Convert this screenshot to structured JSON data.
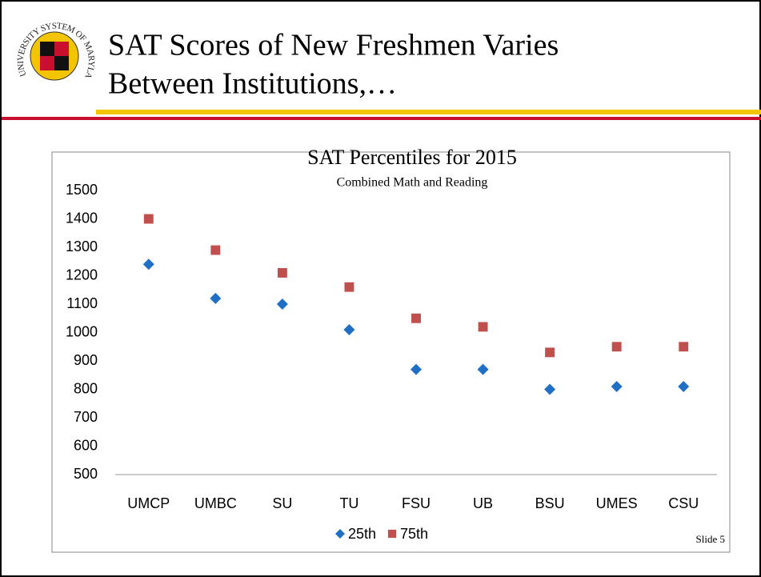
{
  "slide": {
    "title_lines": [
      "SAT Scores of New Freshmen Varies",
      "Between Institutions,…"
    ],
    "logo_text": "UNIVERSITY SYSTEM OF MARYLAND",
    "footer": "Slide 5"
  },
  "chart_data": {
    "type": "scatter",
    "title": "SAT Percentiles for 2015",
    "subtitle": "Combined Math and Reading",
    "categories": [
      "UMCP",
      "UMBC",
      "SU",
      "TU",
      "FSU",
      "UB",
      "BSU",
      "UMES",
      "CSU"
    ],
    "series": [
      {
        "name": "25th",
        "color": "#1f6fc5",
        "marker": "diamond",
        "values": [
          1240,
          1120,
          1100,
          1010,
          870,
          870,
          800,
          810,
          810
        ]
      },
      {
        "name": "75th",
        "color": "#c0504d",
        "marker": "square",
        "values": [
          1400,
          1290,
          1210,
          1160,
          1050,
          1020,
          930,
          950,
          950
        ]
      }
    ],
    "ylim": [
      500,
      1500
    ],
    "yticks": [
      500,
      600,
      700,
      800,
      900,
      1000,
      1100,
      1200,
      1300,
      1400,
      1500
    ],
    "grid": false,
    "legend": "bottom"
  }
}
